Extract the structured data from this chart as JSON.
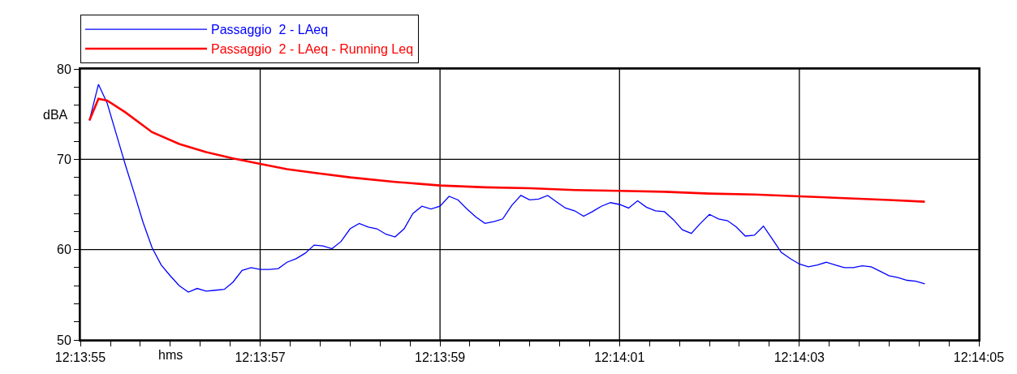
{
  "chart_data": {
    "type": "line",
    "xlabel": "hms",
    "ylabel": "dBA",
    "xlim": [
      12.231944,
      12.234722
    ],
    "ylim": [
      50,
      80
    ],
    "xticks": [
      {
        "value": 12.231944,
        "label": "12:13:55"
      },
      {
        "value": 12.232037,
        "label": null
      },
      {
        "value": 12.232129,
        "label": null
      },
      {
        "value": 12.232222,
        "label": null
      },
      {
        "value": 12.232315,
        "label": null
      },
      {
        "value": 12.232407,
        "label": null
      },
      {
        "value": 12.2325,
        "label": "12:13:57"
      },
      {
        "value": 12.232593,
        "label": null
      },
      {
        "value": 12.232685,
        "label": null
      },
      {
        "value": 12.232778,
        "label": null
      },
      {
        "value": 12.23287,
        "label": null
      },
      {
        "value": 12.232963,
        "label": null
      },
      {
        "value": 12.233056,
        "label": "12:13:59"
      },
      {
        "value": 12.233148,
        "label": null
      },
      {
        "value": 12.233241,
        "label": null
      },
      {
        "value": 12.233333,
        "label": null
      },
      {
        "value": 12.233426,
        "label": null
      },
      {
        "value": 12.233518,
        "label": null
      },
      {
        "value": 12.233611,
        "label": "12:14:01"
      },
      {
        "value": 12.233704,
        "label": null
      },
      {
        "value": 12.233796,
        "label": null
      },
      {
        "value": 12.233889,
        "label": null
      },
      {
        "value": 12.233981,
        "label": null
      },
      {
        "value": 12.234074,
        "label": null
      },
      {
        "value": 12.234167,
        "label": "12:14:03"
      },
      {
        "value": 12.234259,
        "label": null
      },
      {
        "value": 12.234352,
        "label": null
      },
      {
        "value": 12.234444,
        "label": null
      },
      {
        "value": 12.234537,
        "label": null
      },
      {
        "value": 12.23463,
        "label": null
      },
      {
        "value": 12.234722,
        "label": "12:14:05"
      }
    ],
    "yticks": [
      50,
      {
        "value": 52,
        "label": null
      },
      {
        "value": 54,
        "label": null
      },
      {
        "value": 56,
        "label": null
      },
      {
        "value": 58,
        "label": null
      },
      60,
      {
        "value": 62,
        "label": null
      },
      {
        "value": 64,
        "label": null
      },
      {
        "value": 66,
        "label": null
      },
      {
        "value": 68,
        "label": null
      },
      70,
      {
        "value": 72,
        "label": null
      },
      {
        "value": 74,
        "label": null
      },
      {
        "value": 76,
        "label": null
      },
      {
        "value": 78,
        "label": null
      },
      80
    ],
    "grid": true,
    "legend": "top",
    "line_style": "solid",
    "series": [
      {
        "name": "Passaggio  2 - LAeq",
        "color": "#0000ff",
        "x": [
          12.231972,
          12.232,
          12.232027,
          12.232055,
          12.232083,
          12.232111,
          12.232138,
          12.232166,
          12.232194,
          12.232222,
          12.23225,
          12.232278,
          12.232305,
          12.232333,
          12.232361,
          12.232389,
          12.232416,
          12.232444,
          12.232472,
          12.2325,
          12.232528,
          12.232556,
          12.232583,
          12.232611,
          12.232639,
          12.232667,
          12.232694,
          12.232722,
          12.23275,
          12.232778,
          12.232806,
          12.232834,
          12.232861,
          12.232889,
          12.232917,
          12.232945,
          12.232972,
          12.233,
          12.233028,
          12.233056,
          12.233084,
          12.233112,
          12.233139,
          12.233167,
          12.233195,
          12.233223,
          12.23325,
          12.233278,
          12.233306,
          12.233333,
          12.233361,
          12.233389,
          12.233416,
          12.233444,
          12.233472,
          12.2335,
          12.233527,
          12.233555,
          12.233583,
          12.233611,
          12.233639,
          12.233667,
          12.233694,
          12.233722,
          12.23375,
          12.233778,
          12.233805,
          12.233833,
          12.233861,
          12.233889,
          12.233917,
          12.233945,
          12.233972,
          12.234,
          12.234028,
          12.234056,
          12.234083,
          12.234111,
          12.234139,
          12.234167,
          12.234195,
          12.234223,
          12.23425,
          12.234278,
          12.234306,
          12.234334,
          12.234361,
          12.234389,
          12.234417,
          12.234444,
          12.234472,
          12.2345,
          12.234527,
          12.234555
        ],
        "values": [
          74.3,
          78.3,
          76.2,
          72.8,
          69.4,
          66.2,
          63.0,
          60.2,
          58.3,
          57.1,
          56.0,
          55.3,
          55.7,
          55.4,
          55.5,
          55.6,
          56.4,
          57.7,
          58.0,
          57.8,
          57.8,
          57.9,
          58.6,
          59.0,
          59.6,
          60.5,
          60.4,
          60.1,
          60.9,
          62.3,
          62.9,
          62.5,
          62.3,
          61.7,
          61.4,
          62.3,
          64.0,
          64.8,
          64.5,
          64.8,
          65.9,
          65.5,
          64.5,
          63.6,
          62.9,
          63.1,
          63.4,
          64.9,
          66.0,
          65.5,
          65.6,
          66.0,
          65.3,
          64.6,
          64.3,
          63.7,
          64.2,
          64.8,
          65.2,
          65.0,
          64.6,
          65.4,
          64.7,
          64.3,
          64.2,
          63.3,
          62.2,
          61.8,
          62.9,
          63.9,
          63.4,
          63.2,
          62.5,
          61.5,
          61.6,
          62.6,
          61.2,
          59.7,
          59.0,
          58.4,
          58.1,
          58.3,
          58.6,
          58.3,
          58.0,
          58.0,
          58.2,
          58.1,
          57.6,
          57.1,
          56.9,
          56.6,
          56.5,
          56.2
        ]
      },
      {
        "name": "Passaggio  2 - LAeq - Running Leq",
        "color": "#ff0000",
        "x": [
          12.231972,
          12.232,
          12.232027,
          12.232083,
          12.232166,
          12.23225,
          12.232333,
          12.232416,
          12.2325,
          12.232583,
          12.232667,
          12.232778,
          12.232917,
          12.233056,
          12.233195,
          12.233333,
          12.233472,
          12.233611,
          12.23375,
          12.233889,
          12.234028,
          12.234167,
          12.234306,
          12.234444,
          12.234555
        ],
        "values": [
          74.3,
          76.7,
          76.5,
          75.2,
          73.0,
          71.7,
          70.8,
          70.1,
          69.5,
          68.9,
          68.5,
          68.0,
          67.5,
          67.1,
          66.9,
          66.8,
          66.6,
          66.5,
          66.4,
          66.2,
          66.1,
          65.9,
          65.7,
          65.5,
          65.3
        ]
      }
    ]
  }
}
